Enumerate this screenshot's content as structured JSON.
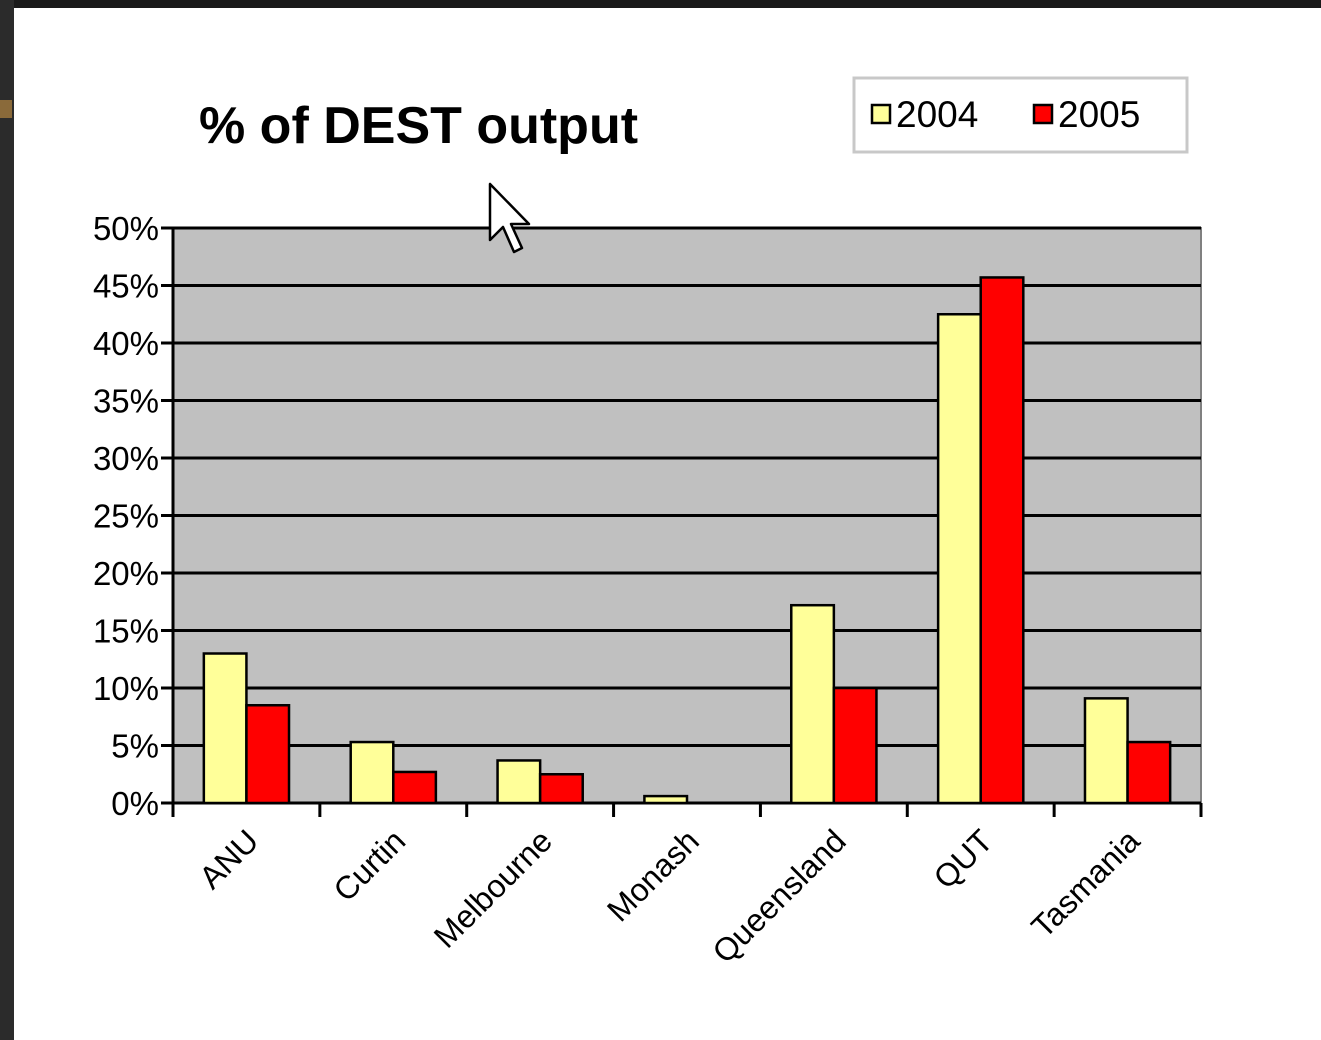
{
  "chart_data": {
    "type": "bar",
    "title": "% of DEST output",
    "xlabel": "",
    "ylabel": "",
    "ylim": [
      0,
      50
    ],
    "yticks": [
      0,
      5,
      10,
      15,
      20,
      25,
      30,
      35,
      40,
      45,
      50
    ],
    "ytick_labels": [
      "0%",
      "5%",
      "10%",
      "15%",
      "20%",
      "25%",
      "30%",
      "35%",
      "40%",
      "45%",
      "50%"
    ],
    "grid": true,
    "legend_position": "top-right",
    "categories": [
      "ANU",
      "Curtin",
      "Melbourne",
      "Monash",
      "Queensland",
      "QUT",
      "Tasmania"
    ],
    "series": [
      {
        "name": "2004",
        "color": "#ffff99",
        "values": [
          13,
          5.3,
          3.7,
          0.6,
          17.2,
          42.5,
          9.1
        ]
      },
      {
        "name": "2005",
        "color": "#ff0000",
        "values": [
          8.5,
          2.7,
          2.5,
          0,
          10,
          45.7,
          5.3
        ]
      }
    ],
    "plot_background": "#c0c0c0"
  },
  "cursor": {
    "icon": "mouse-pointer-icon"
  }
}
